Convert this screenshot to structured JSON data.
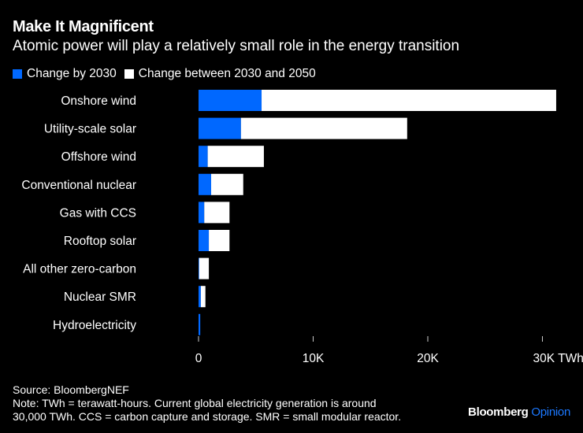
{
  "title": "Make It Magnificent",
  "subtitle": "Atomic power will play a relatively small role in the energy transition",
  "colors": {
    "blue": "#0068ff",
    "white": "#ffffff",
    "background": "#000000"
  },
  "footer": {
    "source": "Source: BloombergNEF",
    "note_line1": "Note: TWh = terawatt-hours. Current global electricity generation is around",
    "note_line2": "30,000 TWh. CCS = carbon capture and storage. SMR = small modular reactor."
  },
  "brand": {
    "name": "Bloomberg",
    "section": "Opinion"
  },
  "chart_data": {
    "type": "bar",
    "orientation": "horizontal",
    "stacked": true,
    "title": "Make It Magnificent",
    "subtitle": "Atomic power will play a relatively small role in the energy transition",
    "categories": [
      "Onshore wind",
      "Utility-scale solar",
      "Offshore wind",
      "Conventional nuclear",
      "Gas with CCS",
      "Rooftop solar",
      "All other zero-carbon",
      "Nuclear SMR",
      "Hydroelectricity"
    ],
    "series": [
      {
        "name": "Change by 2030",
        "color": "#0068ff",
        "values": [
          5500,
          3700,
          800,
          1100,
          500,
          900,
          50,
          200,
          150
        ]
      },
      {
        "name": "Change between 2030 and 2050",
        "color": "#ffffff",
        "values": [
          25700,
          14500,
          4900,
          2800,
          2200,
          1800,
          850,
          400,
          0
        ]
      }
    ],
    "xlim": [
      0,
      32000
    ],
    "xticks": [
      0,
      10000,
      20000,
      30000
    ],
    "xtick_labels": [
      "0",
      "10K",
      "20K",
      "30K TWh"
    ],
    "xlabel": "",
    "ylabel": "",
    "legend": "top-left",
    "grid": false
  }
}
